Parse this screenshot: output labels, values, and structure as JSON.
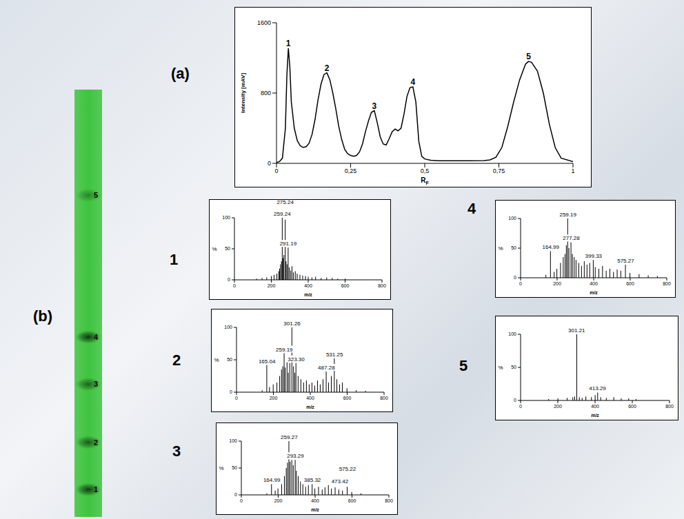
{
  "chart_data": [
    {
      "type": "line",
      "title": "(a)",
      "x_label": "RF",
      "y_label": "Intensity [mAV]",
      "color": "#000000",
      "x": [
        0,
        0.01,
        0.02,
        0.03,
        0.035,
        0.04,
        0.045,
        0.05,
        0.06,
        0.07,
        0.08,
        0.09,
        0.1,
        0.11,
        0.12,
        0.13,
        0.14,
        0.15,
        0.16,
        0.17,
        0.18,
        0.19,
        0.2,
        0.21,
        0.22,
        0.23,
        0.24,
        0.25,
        0.26,
        0.27,
        0.28,
        0.29,
        0.3,
        0.31,
        0.32,
        0.33,
        0.34,
        0.35,
        0.36,
        0.37,
        0.38,
        0.39,
        0.4,
        0.41,
        0.42,
        0.43,
        0.44,
        0.45,
        0.46,
        0.47,
        0.48,
        0.49,
        0.5,
        0.52,
        0.55,
        0.6,
        0.65,
        0.7,
        0.72,
        0.74,
        0.76,
        0.78,
        0.8,
        0.82,
        0.84,
        0.85,
        0.86,
        0.88,
        0.9,
        0.92,
        0.94,
        0.96,
        1.0
      ],
      "values": [
        10,
        20,
        60,
        400,
        1000,
        1310,
        1100,
        700,
        400,
        260,
        200,
        180,
        190,
        230,
        330,
        500,
        720,
        900,
        1010,
        1030,
        950,
        800,
        620,
        420,
        270,
        160,
        110,
        90,
        80,
        90,
        130,
        220,
        360,
        480,
        580,
        600,
        460,
        300,
        220,
        210,
        280,
        360,
        390,
        370,
        400,
        560,
        760,
        860,
        870,
        700,
        250,
        80,
        50,
        35,
        30,
        30,
        30,
        32,
        40,
        70,
        180,
        420,
        700,
        950,
        1130,
        1160,
        1150,
        1050,
        800,
        450,
        180,
        60,
        20
      ],
      "xlim": [
        0,
        1
      ],
      "xticks": [
        0,
        {
          "value": 0.25,
          "label": "0,25"
        },
        {
          "value": 0.5,
          "label": "0,5"
        },
        {
          "value": 0.75,
          "label": "0,75"
        },
        1
      ],
      "ylim": [
        0,
        1600
      ],
      "yticks": [
        0,
        800,
        1600
      ],
      "annotations": [
        {
          "text": "1",
          "x": 0.04,
          "y": 1310
        },
        {
          "text": "2",
          "x": 0.17,
          "y": 1030
        },
        {
          "text": "3",
          "x": 0.33,
          "y": 600
        },
        {
          "text": "4",
          "x": 0.46,
          "y": 870
        },
        {
          "text": "5",
          "x": 0.85,
          "y": 1160
        }
      ]
    },
    {
      "type": "plate",
      "title": "(b)",
      "color": "#3ec43e",
      "spots": [
        {
          "label": "1",
          "rf": 0.04
        },
        {
          "label": "2",
          "rf": 0.17
        },
        {
          "label": "3",
          "rf": 0.33
        },
        {
          "label": "4",
          "rf": 0.46
        },
        {
          "label": "5",
          "rf": 0.85
        }
      ]
    },
    {
      "type": "bar",
      "title": "1",
      "x_label": "m/z",
      "y_label": "%",
      "color": "#000000",
      "x": [
        120,
        150,
        175,
        200,
        215,
        230,
        240,
        245,
        250,
        255,
        259.24,
        263,
        268,
        275.24,
        280,
        285,
        291.19,
        297,
        305,
        312,
        320,
        330,
        340,
        355,
        370,
        385,
        400,
        420,
        440,
        470,
        500,
        530,
        560,
        600
      ],
      "values": [
        2,
        3,
        4,
        6,
        8,
        10,
        14,
        18,
        25,
        30,
        100,
        35,
        40,
        97,
        30,
        25,
        52,
        20,
        15,
        22,
        12,
        14,
        10,
        8,
        7,
        6,
        5,
        4,
        5,
        3,
        4,
        3,
        2,
        2
      ],
      "xlim": [
        0,
        800
      ],
      "xticks": [
        0,
        200,
        400,
        600,
        800
      ],
      "ylim": [
        0,
        100
      ],
      "yticks": [
        0,
        50,
        100
      ],
      "annotations": [
        {
          "text": "259.24",
          "x": 259.24,
          "y": 100
        },
        {
          "text": "275.24",
          "x": 275.24,
          "y": 97
        },
        {
          "text": "291.19",
          "x": 291.19,
          "y": 52
        }
      ]
    },
    {
      "type": "bar",
      "title": "2",
      "x_label": "m/z",
      "y_label": "%",
      "color": "#000000",
      "x": [
        140,
        165.04,
        180,
        200,
        220,
        235,
        245,
        252,
        259.19,
        265,
        275,
        282,
        290,
        301.26,
        310,
        317,
        323.3,
        335,
        350,
        365,
        380,
        395,
        410,
        425,
        440,
        455,
        470,
        487.28,
        500,
        515,
        531.25,
        545,
        560,
        575,
        600,
        650,
        700
      ],
      "values": [
        3,
        42,
        8,
        12,
        15,
        25,
        35,
        40,
        60,
        38,
        50,
        30,
        45,
        100,
        40,
        30,
        45,
        25,
        20,
        15,
        18,
        12,
        15,
        10,
        18,
        12,
        20,
        32,
        15,
        25,
        52,
        20,
        12,
        15,
        6,
        3,
        2
      ],
      "xlim": [
        0,
        800
      ],
      "xticks": [
        0,
        200,
        400,
        600,
        800
      ],
      "ylim": [
        0,
        100
      ],
      "yticks": [
        0,
        50,
        100
      ],
      "annotations": [
        {
          "text": "165.04",
          "x": 165.04,
          "y": 42
        },
        {
          "text": "259.19",
          "x": 259.19,
          "y": 60
        },
        {
          "text": "301.26",
          "x": 301.26,
          "y": 100
        },
        {
          "text": "323.30",
          "x": 323.3,
          "y": 45
        },
        {
          "text": "487.28",
          "x": 487.28,
          "y": 32
        },
        {
          "text": "531.25",
          "x": 531.25,
          "y": 52
        }
      ]
    },
    {
      "type": "bar",
      "title": "3",
      "x_label": "m/z",
      "y_label": "%",
      "color": "#000000",
      "x": [
        140,
        164.99,
        185,
        200,
        220,
        235,
        245,
        252,
        259.27,
        266,
        275,
        283,
        293.29,
        300,
        310,
        322,
        335,
        350,
        365,
        385.32,
        400,
        420,
        440,
        455,
        473.42,
        490,
        510,
        530,
        550,
        575.22,
        600,
        650
      ],
      "values": [
        3,
        20,
        8,
        12,
        20,
        35,
        50,
        60,
        100,
        62,
        65,
        55,
        65,
        45,
        35,
        25,
        20,
        15,
        18,
        20,
        12,
        15,
        10,
        14,
        18,
        12,
        14,
        10,
        8,
        15,
        5,
        3
      ],
      "xlim": [
        0,
        800
      ],
      "xticks": [
        0,
        200,
        400,
        600,
        800
      ],
      "ylim": [
        0,
        100
      ],
      "yticks": [
        0,
        50,
        100
      ],
      "annotations": [
        {
          "text": "164.99",
          "x": 164.99,
          "y": 20
        },
        {
          "text": "259.27",
          "x": 259.27,
          "y": 100
        },
        {
          "text": "293.29",
          "x": 293.29,
          "y": 65
        },
        {
          "text": "385.32",
          "x": 385.32,
          "y": 20
        },
        {
          "text": "473.42",
          "x": 473.42,
          "y": 18
        },
        {
          "text": "575.22",
          "x": 575.22,
          "y": 15
        }
      ]
    },
    {
      "type": "bar",
      "title": "4",
      "x_label": "m/z",
      "y_label": "%",
      "color": "#000000",
      "x": [
        140,
        164.99,
        185,
        200,
        220,
        235,
        245,
        252,
        259.19,
        266,
        277.28,
        285,
        295,
        305,
        320,
        335,
        350,
        365,
        380,
        399.33,
        410,
        430,
        450,
        470,
        490,
        510,
        530,
        550,
        575.27,
        600,
        650,
        700,
        750
      ],
      "values": [
        5,
        45,
        10,
        15,
        25,
        35,
        40,
        55,
        100,
        50,
        60,
        40,
        35,
        30,
        25,
        20,
        28,
        22,
        25,
        30,
        18,
        15,
        20,
        12,
        15,
        10,
        14,
        12,
        22,
        8,
        6,
        4,
        3
      ],
      "xlim": [
        0,
        800
      ],
      "xticks": [
        0,
        200,
        400,
        600,
        800
      ],
      "ylim": [
        0,
        100
      ],
      "yticks": [
        0,
        50,
        100
      ],
      "annotations": [
        {
          "text": "164.99",
          "x": 164.99,
          "y": 45
        },
        {
          "text": "259.19",
          "x": 259.19,
          "y": 100
        },
        {
          "text": "277.28",
          "x": 277.28,
          "y": 60
        },
        {
          "text": "399.33",
          "x": 399.33,
          "y": 30
        },
        {
          "text": "575.27",
          "x": 575.27,
          "y": 22
        }
      ]
    },
    {
      "type": "bar",
      "title": "5",
      "x_label": "m/z",
      "y_label": "%",
      "color": "#000000",
      "x": [
        150,
        200,
        250,
        280,
        290,
        301.21,
        315,
        330,
        350,
        380,
        400,
        413.29,
        430,
        460,
        500,
        540,
        580,
        620
      ],
      "values": [
        2,
        3,
        4,
        5,
        6,
        100,
        5,
        4,
        6,
        5,
        8,
        12,
        5,
        4,
        5,
        3,
        3,
        2
      ],
      "xlim": [
        0,
        800
      ],
      "xticks": [
        0,
        200,
        400,
        600,
        800
      ],
      "ylim": [
        0,
        100
      ],
      "yticks": [
        0,
        50,
        100
      ],
      "annotations": [
        {
          "text": "301.21",
          "x": 301.21,
          "y": 100
        },
        {
          "text": "413.29",
          "x": 413.29,
          "y": 12
        }
      ]
    }
  ]
}
